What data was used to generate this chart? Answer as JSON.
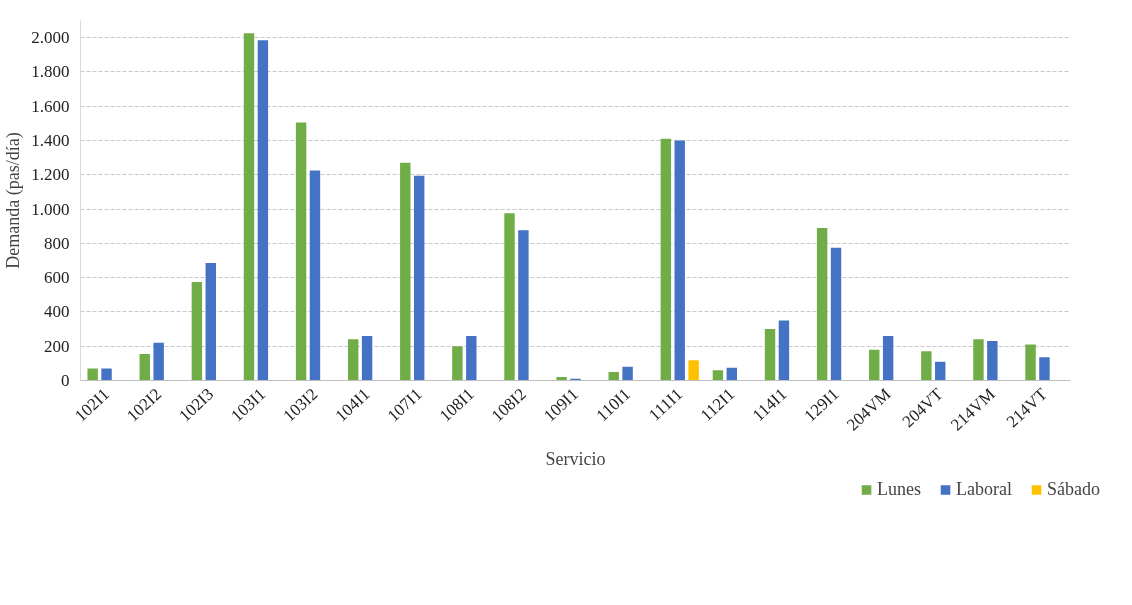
{
  "chart_data": {
    "type": "bar",
    "xlabel": "Servicio",
    "ylabel": "Demanda (pas/día)",
    "categories": [
      "102I1",
      "102I2",
      "102I3",
      "103I1",
      "103I2",
      "104I1",
      "107I1",
      "108I1",
      "108I2",
      "109I1",
      "110I1",
      "111I1",
      "112I1",
      "114I1",
      "129I1",
      "204VM",
      "204VT",
      "214VM",
      "214VT"
    ],
    "series": [
      {
        "name": "Lunes",
        "color": "#70ad47",
        "values": [
          70,
          155,
          575,
          2025,
          1505,
          240,
          1270,
          200,
          975,
          20,
          50,
          1410,
          60,
          300,
          890,
          180,
          170,
          240,
          210
        ]
      },
      {
        "name": "Laboral",
        "color": "#4472c4",
        "values": [
          70,
          220,
          685,
          1985,
          1225,
          260,
          1195,
          260,
          877,
          10,
          80,
          1400,
          75,
          350,
          775,
          260,
          110,
          230,
          135
        ]
      },
      {
        "name": "Sábado",
        "color": "#ffc000",
        "values": [
          null,
          null,
          null,
          null,
          null,
          null,
          null,
          null,
          null,
          null,
          null,
          118,
          null,
          null,
          null,
          null,
          null,
          null,
          null
        ]
      }
    ],
    "ylim": [
      0,
      2100
    ],
    "yticks": [
      0,
      200,
      400,
      600,
      800,
      {
        "value": 1000,
        "label": "1.000"
      },
      {
        "value": 1200,
        "label": "1.200"
      },
      {
        "value": 1400,
        "label": "1.400"
      },
      {
        "value": 1600,
        "label": "1.600"
      },
      {
        "value": 1800,
        "label": "1.800"
      },
      {
        "value": 2000,
        "label": "2.000"
      }
    ],
    "grid": "y",
    "legend": "bottom right"
  }
}
